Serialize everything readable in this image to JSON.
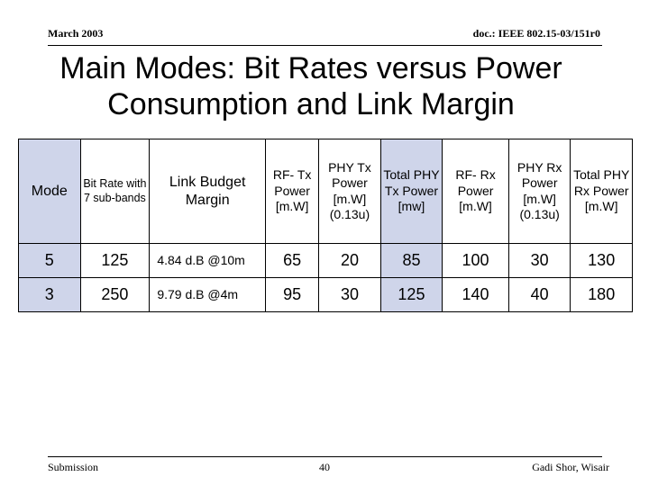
{
  "header": {
    "date": "March 2003",
    "doc": "doc.: IEEE 802.15-03/151r0"
  },
  "title": {
    "line1": "Main Modes: Bit Rates versus Power",
    "line2": "Consumption and Link Margin"
  },
  "table": {
    "columns": [
      "Mode",
      "Bit Rate with 7 sub-bands",
      "Link Budget Margin",
      "RF- Tx Power [m.W]",
      "PHY Tx Power [m.W] (0.13u)",
      "Total PHY Tx Power [mw]",
      "RF- Rx Power [m.W]",
      "PHY Rx Power [m.W] (0.13u)",
      "Total PHY Rx Power [m.W]"
    ],
    "rows": [
      [
        "5",
        "125",
        "4.84 d.B @10m",
        "65",
        "20",
        "85",
        "100",
        "30",
        "130"
      ],
      [
        "3",
        "250",
        "9.79 d.B @4m",
        "95",
        "30",
        "125",
        "140",
        "40",
        "180"
      ]
    ]
  },
  "footer": {
    "left": "Submission",
    "page": "40",
    "right": "Gadi Shor, Wisair"
  }
}
